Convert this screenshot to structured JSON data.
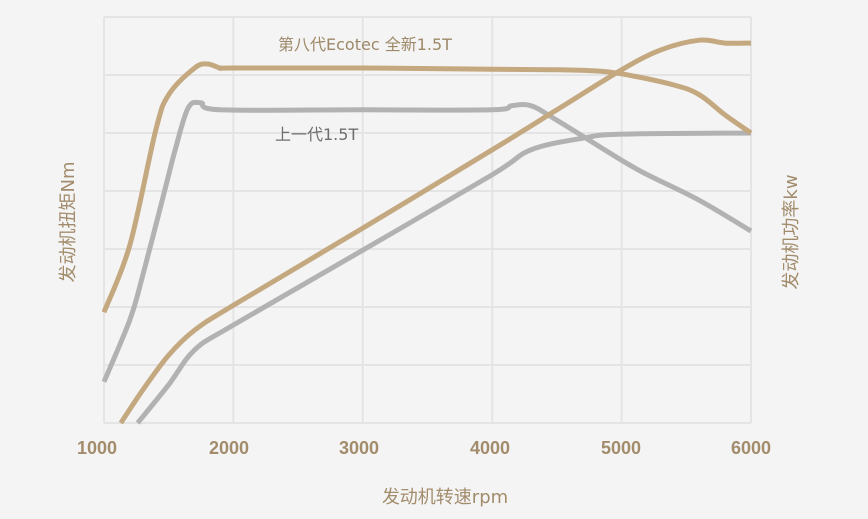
{
  "chart_data": {
    "type": "line",
    "title": "",
    "xlabel": "发动机转速rpm",
    "ylabel_left": "发动机扭矩Nm",
    "ylabel_right": "发动机功率kw",
    "xlim": [
      1000,
      6000
    ],
    "x_ticks": [
      "1000",
      "2000",
      "3000",
      "4000",
      "5000",
      "6000"
    ],
    "y_grid_units": 7,
    "y_tick_labels_visible": false,
    "grid": true,
    "legend": "inline annotations",
    "annotations": [
      {
        "text": "第八代Ecotec 全新1.5T",
        "color": "#9d8868"
      },
      {
        "text": "上一代1.5T",
        "color": "#6e6e6e"
      }
    ],
    "series": [
      {
        "name": "第八代Ecotec 全新1.5T 扭矩",
        "axis": "left",
        "color": "#c4a880",
        "x": [
          1000,
          1200,
          1400,
          1500,
          1700,
          1800,
          1900,
          2000,
          3000,
          4000,
          4500,
          4800,
          5000,
          5400,
          5600,
          5800,
          6000
        ],
        "values": [
          1.91,
          3.07,
          5.05,
          5.66,
          6.12,
          6.19,
          6.12,
          6.12,
          6.12,
          6.1,
          6.09,
          6.07,
          6.02,
          5.83,
          5.66,
          5.31,
          5.0
        ]
      },
      {
        "name": "上一代1.5T 扭矩",
        "axis": "left",
        "color": "#b2b2b2",
        "x": [
          1000,
          1200,
          1300,
          1450,
          1550,
          1650,
          1750,
          1900,
          3000,
          4000,
          4150,
          4300,
          4500,
          5000,
          5200,
          5600,
          6000
        ],
        "values": [
          0.71,
          1.78,
          2.55,
          3.84,
          4.71,
          5.43,
          5.52,
          5.4,
          5.4,
          5.4,
          5.47,
          5.47,
          5.22,
          4.53,
          4.28,
          3.84,
          3.31
        ]
      },
      {
        "name": "第八代Ecotec 全新1.5T 功率",
        "axis": "right",
        "color": "#c4a880",
        "x": [
          1130,
          1300,
          1500,
          1700,
          2000,
          3000,
          4000,
          4500,
          5000,
          5300,
          5600,
          5800,
          6000
        ],
        "values": [
          0.0,
          0.57,
          1.17,
          1.6,
          2.03,
          3.36,
          4.71,
          5.4,
          6.09,
          6.43,
          6.6,
          6.55,
          6.55
        ]
      },
      {
        "name": "上一代1.5T 功率",
        "axis": "right",
        "color": "#b2b2b2",
        "x": [
          1260,
          1500,
          1700,
          2000,
          3000,
          4000,
          4300,
          4700,
          5000,
          6000
        ],
        "values": [
          0.0,
          0.66,
          1.26,
          1.69,
          2.98,
          4.28,
          4.71,
          4.91,
          4.98,
          5.0
        ]
      }
    ]
  }
}
